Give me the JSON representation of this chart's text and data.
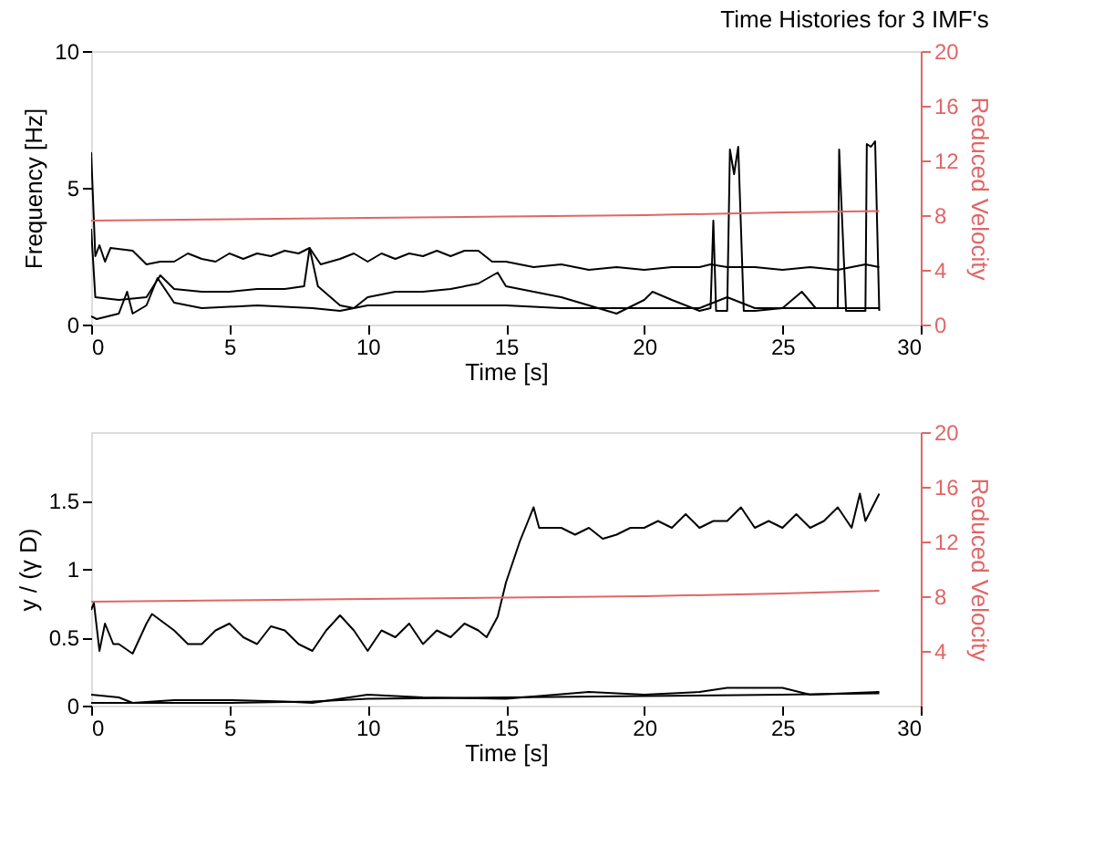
{
  "chart_data": [
    {
      "type": "line",
      "title": "Time Histories for 3 IMF's",
      "xlabel": "Time [s]",
      "ylabel": "Frequency [Hz]",
      "y2label": "Reduced Velocity",
      "xlim": [
        0,
        30
      ],
      "xticks": [
        0,
        5,
        10,
        15,
        20,
        25,
        30
      ],
      "ylim": [
        0,
        10
      ],
      "yticks": [
        0,
        5,
        10
      ],
      "y2lim": [
        0,
        20
      ],
      "y2ticks": [
        0,
        4,
        8,
        12,
        16,
        20
      ],
      "grid": false,
      "line_style": "solid",
      "series": [
        {
          "color": "#000000",
          "x": [
            0,
            0.15,
            0.3,
            0.5,
            0.7,
            1.5,
            2,
            2.5,
            3,
            3.5,
            4,
            4.5,
            5,
            5.5,
            6,
            6.5,
            7,
            7.5,
            7.9,
            8.3,
            9,
            9.5,
            10,
            10.5,
            11,
            11.5,
            12,
            12.5,
            13,
            13.5,
            14,
            14.5,
            15,
            16,
            17,
            18,
            19,
            20,
            21,
            22,
            22.4,
            23,
            24,
            25,
            26,
            27,
            28,
            28.5
          ],
          "values": [
            6.3,
            2.5,
            2.9,
            2.3,
            2.8,
            2.7,
            2.2,
            2.3,
            2.3,
            2.6,
            2.4,
            2.3,
            2.6,
            2.4,
            2.6,
            2.5,
            2.7,
            2.6,
            2.8,
            2.2,
            2.4,
            2.6,
            2.3,
            2.6,
            2.4,
            2.6,
            2.5,
            2.7,
            2.5,
            2.7,
            2.7,
            2.3,
            2.3,
            2.1,
            2.2,
            2.0,
            2.1,
            2.0,
            2.1,
            2.1,
            2.2,
            2.1,
            2.1,
            2.0,
            2.1,
            2.0,
            2.2,
            2.1
          ]
        },
        {
          "color": "#000000",
          "x": [
            0,
            0.15,
            1,
            2,
            2.5,
            3,
            4,
            5,
            6,
            7,
            7.7,
            7.9,
            8.2,
            9,
            9.5,
            10,
            11,
            12,
            13,
            14,
            14.7,
            15,
            16,
            17,
            18,
            19,
            20,
            20.3,
            21,
            22,
            22.4,
            22.5,
            22.6,
            23,
            23.1,
            23.25,
            23.4,
            23.6,
            24,
            25,
            25.7,
            26.2,
            27,
            27.05,
            27.15,
            27.3,
            28,
            28.05,
            28.2,
            28.35,
            28.5
          ],
          "values": [
            3.5,
            1.0,
            0.9,
            1.0,
            1.8,
            1.3,
            1.2,
            1.2,
            1.3,
            1.3,
            1.4,
            2.8,
            1.4,
            0.7,
            0.6,
            1.0,
            1.2,
            1.2,
            1.3,
            1.5,
            1.9,
            1.4,
            1.2,
            1.0,
            0.7,
            0.4,
            0.9,
            1.2,
            0.9,
            0.5,
            0.6,
            3.8,
            0.5,
            0.5,
            6.4,
            5.5,
            6.5,
            0.5,
            0.5,
            0.6,
            1.2,
            0.6,
            0.6,
            6.4,
            4.0,
            0.5,
            0.5,
            6.6,
            6.5,
            6.7,
            0.5
          ]
        },
        {
          "color": "#000000",
          "x": [
            0,
            0.2,
            1,
            1.3,
            1.5,
            2,
            2.4,
            3,
            4,
            6,
            8,
            9,
            10,
            12,
            15,
            17,
            19,
            20,
            22,
            23,
            24,
            26,
            27,
            28.5
          ],
          "values": [
            0.3,
            0.2,
            0.4,
            1.2,
            0.4,
            0.7,
            1.7,
            0.8,
            0.6,
            0.7,
            0.6,
            0.5,
            0.7,
            0.7,
            0.7,
            0.6,
            0.6,
            0.6,
            0.6,
            1.0,
            0.6,
            0.6,
            0.6,
            0.6
          ]
        },
        {
          "color": "#e06666",
          "axis": "y2",
          "x": [
            0,
            5,
            10,
            15,
            20,
            25,
            28.5
          ],
          "values": [
            7.6,
            7.7,
            7.8,
            7.9,
            8.0,
            8.2,
            8.3
          ]
        }
      ]
    },
    {
      "type": "line",
      "xlabel": "Time [s]",
      "ylabel": "y / (γ D)",
      "y2label": "Reduced Velocity",
      "xlim": [
        0,
        30
      ],
      "xticks": [
        0,
        5,
        10,
        15,
        20,
        25,
        30
      ],
      "ylim": [
        0,
        2
      ],
      "yticks": [
        0,
        0.5,
        1,
        1.5
      ],
      "y2lim": [
        0,
        20
      ],
      "y2ticks": [
        4,
        8,
        12,
        16,
        20
      ],
      "grid": false,
      "line_style": "solid",
      "series": [
        {
          "color": "#000000",
          "x": [
            0,
            0.1,
            0.3,
            0.5,
            0.8,
            1,
            1.5,
            2,
            2.2,
            3,
            3.5,
            4,
            4.5,
            5,
            5.5,
            6,
            6.5,
            7,
            7.5,
            8,
            8.5,
            9,
            9.5,
            10,
            10.5,
            11,
            11.5,
            12,
            12.5,
            13,
            13.5,
            14,
            14.3,
            14.7,
            15,
            15.5,
            15.8,
            16,
            16.2,
            17,
            17.5,
            18,
            18.5,
            19,
            19.5,
            20,
            20.5,
            21,
            21.5,
            22,
            22.5,
            23,
            23.5,
            24,
            24.5,
            25,
            25.5,
            26,
            26.5,
            27,
            27.5,
            27.8,
            28,
            28.5
          ],
          "values": [
            0.7,
            0.75,
            0.4,
            0.6,
            0.45,
            0.45,
            0.38,
            0.6,
            0.67,
            0.55,
            0.45,
            0.45,
            0.55,
            0.6,
            0.5,
            0.45,
            0.58,
            0.55,
            0.45,
            0.4,
            0.55,
            0.66,
            0.55,
            0.4,
            0.55,
            0.5,
            0.6,
            0.45,
            0.55,
            0.5,
            0.6,
            0.55,
            0.5,
            0.65,
            0.9,
            1.2,
            1.35,
            1.45,
            1.3,
            1.3,
            1.25,
            1.3,
            1.22,
            1.25,
            1.3,
            1.3,
            1.35,
            1.3,
            1.4,
            1.3,
            1.35,
            1.35,
            1.45,
            1.3,
            1.35,
            1.3,
            1.4,
            1.3,
            1.35,
            1.45,
            1.3,
            1.55,
            1.35,
            1.55
          ]
        },
        {
          "color": "#000000",
          "x": [
            0,
            1,
            1.5,
            3,
            5,
            7,
            8,
            10,
            12,
            15,
            18,
            20,
            22,
            23,
            25,
            26,
            28.5
          ],
          "values": [
            0.08,
            0.06,
            0.02,
            0.04,
            0.04,
            0.03,
            0.02,
            0.08,
            0.06,
            0.05,
            0.1,
            0.08,
            0.1,
            0.13,
            0.13,
            0.08,
            0.1
          ]
        },
        {
          "color": "#000000",
          "x": [
            0,
            5,
            8,
            10,
            15,
            20,
            25,
            28.5
          ],
          "values": [
            0.02,
            0.02,
            0.03,
            0.05,
            0.06,
            0.07,
            0.08,
            0.09
          ]
        },
        {
          "color": "#e06666",
          "axis": "y2",
          "x": [
            0,
            5,
            10,
            15,
            20,
            25,
            28.5
          ],
          "values": [
            7.6,
            7.7,
            7.8,
            7.9,
            8.0,
            8.2,
            8.4
          ]
        }
      ]
    }
  ]
}
